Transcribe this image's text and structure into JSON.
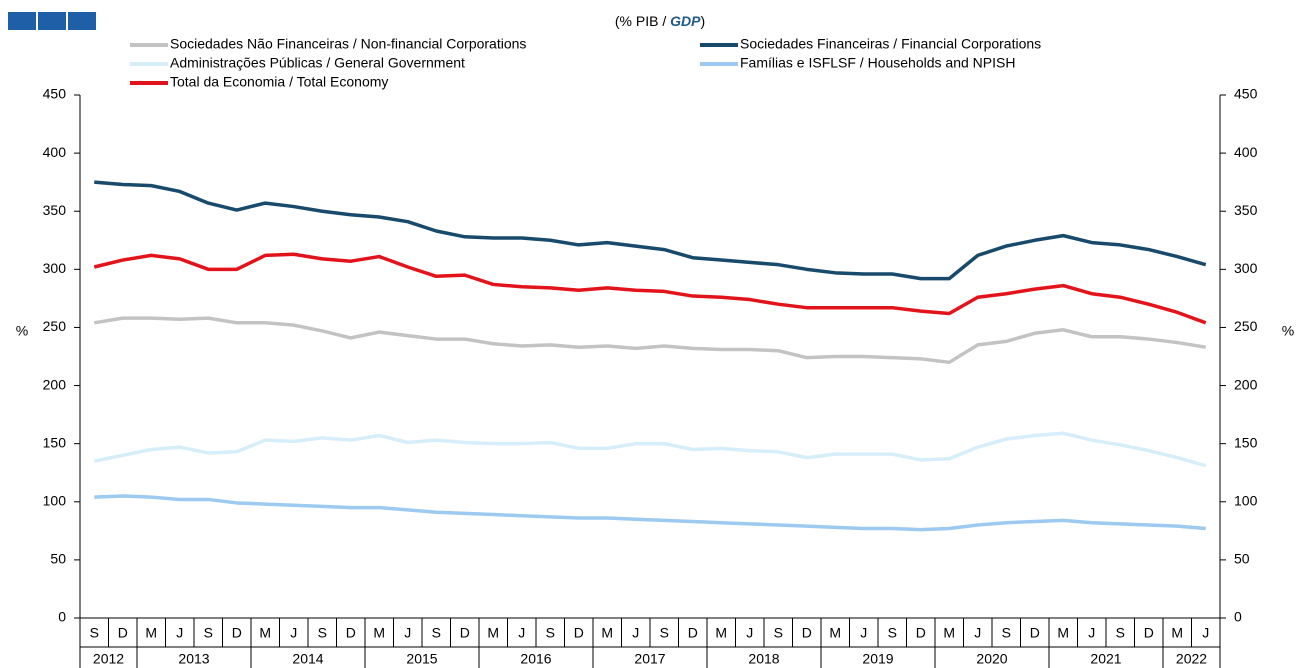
{
  "chart_data": {
    "type": "line",
    "subtitle": {
      "start": "(% PIB / ",
      "emphasis": "GDP",
      "end": ")"
    },
    "y_label": "%",
    "y2_label": "%",
    "categories": [
      "S",
      "D",
      "M",
      "J",
      "S",
      "D",
      "M",
      "J",
      "S",
      "D",
      "M",
      "J",
      "S",
      "D",
      "M",
      "J",
      "S",
      "D",
      "M",
      "J",
      "S",
      "D",
      "M",
      "J",
      "S",
      "D",
      "M",
      "J",
      "S",
      "D",
      "M",
      "J",
      "S",
      "D",
      "M",
      "J",
      "S",
      "D",
      "M",
      "J"
    ],
    "category_years": [
      "2012",
      "2012",
      "2013",
      "2013",
      "2013",
      "2013",
      "2014",
      "2014",
      "2014",
      "2014",
      "2015",
      "2015",
      "2015",
      "2015",
      "2016",
      "2016",
      "2016",
      "2016",
      "2017",
      "2017",
      "2017",
      "2017",
      "2018",
      "2018",
      "2018",
      "2018",
      "2019",
      "2019",
      "2019",
      "2019",
      "2020",
      "2020",
      "2020",
      "2020",
      "2021",
      "2021",
      "2021",
      "2021",
      "2022",
      "2022"
    ],
    "series": [
      {
        "name": "Sociedades Não Financeiras / Non-financial Corporations",
        "color": "#c3c3c3",
        "values": [
          254,
          258,
          258,
          257,
          258,
          254,
          254,
          252,
          247,
          241,
          246,
          243,
          240,
          240,
          236,
          234,
          235,
          233,
          234,
          232,
          234,
          232,
          231,
          231,
          230,
          224,
          225,
          225,
          224,
          223,
          220,
          235,
          238,
          245,
          248,
          242,
          242,
          240,
          237,
          233
        ]
      },
      {
        "name": "Sociedades Financeiras / Financial Corporations",
        "color": "#174a6b",
        "values": [
          375,
          373,
          372,
          367,
          357,
          351,
          357,
          354,
          350,
          347,
          345,
          341,
          333,
          328,
          327,
          327,
          325,
          321,
          323,
          320,
          317,
          310,
          308,
          306,
          304,
          300,
          297,
          296,
          296,
          292,
          292,
          312,
          320,
          325,
          329,
          323,
          321,
          317,
          311,
          304
        ]
      },
      {
        "name": "Administrações Públicas / General Government",
        "color": "#d6eefa",
        "values": [
          135,
          140,
          145,
          147,
          142,
          143,
          153,
          152,
          155,
          153,
          157,
          151,
          153,
          151,
          150,
          150,
          151,
          146,
          146,
          150,
          150,
          145,
          146,
          144,
          143,
          138,
          141,
          141,
          141,
          136,
          137,
          147,
          154,
          157,
          159,
          153,
          149,
          144,
          138,
          131
        ]
      },
      {
        "name": "Famílias e ISFLSF / Households and NPISH",
        "color": "#9ccaf0",
        "values": [
          104,
          105,
          104,
          102,
          102,
          99,
          98,
          97,
          96,
          95,
          95,
          93,
          91,
          90,
          89,
          88,
          87,
          86,
          86,
          85,
          84,
          83,
          82,
          81,
          80,
          79,
          78,
          77,
          77,
          76,
          77,
          80,
          82,
          83,
          84,
          82,
          81,
          80,
          79,
          77
        ]
      },
      {
        "name": "Total da Economia / Total Economy",
        "color": "#e3131b",
        "values": [
          302,
          308,
          312,
          309,
          300,
          300,
          312,
          313,
          309,
          307,
          311,
          302,
          294,
          295,
          287,
          285,
          284,
          282,
          284,
          282,
          281,
          277,
          276,
          274,
          270,
          267,
          267,
          267,
          267,
          264,
          262,
          276,
          279,
          283,
          286,
          279,
          276,
          270,
          263,
          254
        ]
      }
    ],
    "draw_order": [
      0,
      2,
      3,
      1,
      4
    ],
    "ylim": [
      0,
      450
    ],
    "yticks": [
      0,
      50,
      100,
      150,
      200,
      250,
      300,
      350,
      400,
      450
    ],
    "y2lim": [
      0,
      450
    ],
    "y2ticks": [
      0,
      50,
      100,
      150,
      200,
      250,
      300,
      350,
      400,
      450
    ],
    "grid": false
  }
}
